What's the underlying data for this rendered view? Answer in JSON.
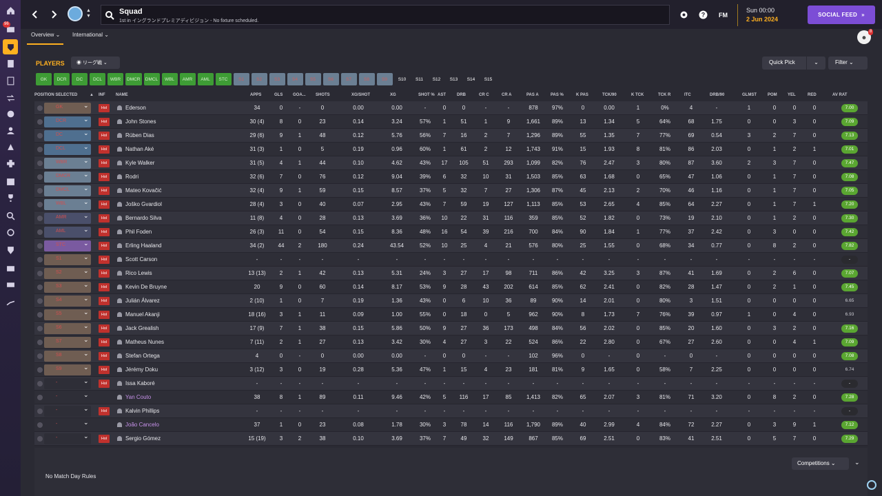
{
  "topbar": {
    "title": "Squad",
    "subtitle": "1st in イングランドプレミアディビジョン - No fixture scheduled.",
    "fm_logo": "FM",
    "date_time": "Sun 00:00",
    "date_day": "2 Jun 2024",
    "social_feed": "SOCIAL FEED"
  },
  "rail_badge": "96",
  "subnav": {
    "tabs": [
      {
        "label": "Overview"
      },
      {
        "label": "International"
      }
    ],
    "avatar_badge": "8"
  },
  "players_bar": {
    "label": "PLAYERS",
    "league_select": "リーグ戦",
    "quick_pick": "Quick Pick",
    "filter": "Filter"
  },
  "position_chips": [
    {
      "label": "GK",
      "color": "green"
    },
    {
      "label": "DCR",
      "color": "green"
    },
    {
      "label": "DC",
      "color": "green"
    },
    {
      "label": "DCL",
      "color": "green"
    },
    {
      "label": "WBR",
      "color": "green"
    },
    {
      "label": "DMCR",
      "color": "green"
    },
    {
      "label": "DMCL",
      "color": "green"
    },
    {
      "label": "WBL",
      "color": "green"
    },
    {
      "label": "AMR",
      "color": "green"
    },
    {
      "label": "AML",
      "color": "green"
    },
    {
      "label": "STC",
      "color": "green"
    },
    {
      "label": "S1",
      "color": "grey"
    },
    {
      "label": "S2",
      "color": "grey"
    },
    {
      "label": "S3",
      "color": "grey"
    },
    {
      "label": "S4",
      "color": "grey"
    },
    {
      "label": "S5",
      "color": "grey"
    },
    {
      "label": "S6",
      "color": "grey"
    },
    {
      "label": "S7",
      "color": "grey"
    },
    {
      "label": "S8",
      "color": "grey"
    },
    {
      "label": "S9",
      "color": "grey"
    },
    {
      "label": "S10",
      "color": "plain"
    },
    {
      "label": "S11",
      "color": "plain"
    },
    {
      "label": "S12",
      "color": "plain"
    },
    {
      "label": "S13",
      "color": "plain"
    },
    {
      "label": "S14",
      "color": "plain"
    },
    {
      "label": "S15",
      "color": "plain"
    }
  ],
  "columns": [
    "POSITION SELECTED",
    "INF",
    "NAME",
    "APPS",
    "GLS",
    "GOA...",
    "SHOTS",
    "XG/SHOT",
    "XG",
    "SHOT %",
    "AST",
    "DRB",
    "CR C",
    "CR A",
    "PAS A",
    "PAS %",
    "K PAS",
    "TCK/90",
    "K TCK",
    "TCK R",
    "ITC",
    "DRB/90",
    "GLMST",
    "POM",
    "YEL",
    "RED",
    "AV RAT"
  ],
  "rows": [
    {
      "pos": "GK",
      "pos_color": "#6f5d52",
      "pos_text": "#d05050",
      "inf": "Hol",
      "name": "Ederson",
      "name_color": "#e6e6ea",
      "vals": [
        "34",
        "0",
        "-",
        "0",
        "0.00",
        "0.00",
        "-",
        "0",
        "0",
        "-",
        "-",
        "878",
        "97%",
        "0",
        "0.00",
        "1",
        "0%",
        "4",
        "-",
        "1",
        "0",
        "0",
        "0"
      ],
      "avrat": "7.00",
      "avrat_style": "green"
    },
    {
      "pos": "DCR",
      "pos_color": "#4f6f8f",
      "pos_text": "#d05050",
      "inf": "Hol",
      "name": "John Stones",
      "name_color": "#e6e6ea",
      "vals": [
        "30 (4)",
        "8",
        "0",
        "23",
        "0.14",
        "3.24",
        "57%",
        "1",
        "51",
        "1",
        "9",
        "1,661",
        "89%",
        "13",
        "1.34",
        "5",
        "64%",
        "68",
        "1.75",
        "0",
        "0",
        "3",
        "0"
      ],
      "avrat": "7.09",
      "avrat_style": "green"
    },
    {
      "pos": "DC",
      "pos_color": "#4f6f8f",
      "pos_text": "#d05050",
      "inf": "Hol",
      "name": "Rúben Dias",
      "name_color": "#e6e6ea",
      "vals": [
        "29 (6)",
        "9",
        "1",
        "48",
        "0.12",
        "5.76",
        "56%",
        "7",
        "16",
        "2",
        "7",
        "1,296",
        "89%",
        "55",
        "1.35",
        "7",
        "77%",
        "69",
        "0.54",
        "3",
        "2",
        "7",
        "0"
      ],
      "avrat": "7.13",
      "avrat_style": "green"
    },
    {
      "pos": "DCL",
      "pos_color": "#4f6f8f",
      "pos_text": "#d05050",
      "inf": "Hol",
      "name": "Nathan Aké",
      "name_color": "#e6e6ea",
      "vals": [
        "31 (3)",
        "1",
        "0",
        "5",
        "0.19",
        "0.96",
        "60%",
        "1",
        "61",
        "2",
        "12",
        "1,743",
        "91%",
        "15",
        "1.93",
        "8",
        "81%",
        "86",
        "2.03",
        "0",
        "1",
        "2",
        "1"
      ],
      "avrat": "7.01",
      "avrat_style": "green"
    },
    {
      "pos": "WBR",
      "pos_color": "#6b7f93",
      "pos_text": "#d05050",
      "inf": "Hol",
      "name": "Kyle Walker",
      "name_color": "#e6e6ea",
      "vals": [
        "31 (5)",
        "4",
        "1",
        "44",
        "0.10",
        "4.62",
        "43%",
        "17",
        "105",
        "51",
        "293",
        "1,099",
        "82%",
        "76",
        "2.47",
        "3",
        "80%",
        "87",
        "3.60",
        "2",
        "3",
        "7",
        "0"
      ],
      "avrat": "7.47",
      "avrat_style": "green"
    },
    {
      "pos": "DMCR",
      "pos_color": "#6b7f93",
      "pos_text": "#d05050",
      "inf": "Hol",
      "name": "Rodri",
      "name_color": "#e6e6ea",
      "vals": [
        "32 (6)",
        "7",
        "0",
        "76",
        "0.12",
        "9.04",
        "39%",
        "6",
        "32",
        "10",
        "31",
        "1,503",
        "85%",
        "63",
        "1.68",
        "0",
        "65%",
        "47",
        "1.06",
        "0",
        "1",
        "7",
        "0"
      ],
      "avrat": "7.08",
      "avrat_style": "green"
    },
    {
      "pos": "DMCL",
      "pos_color": "#6b7f93",
      "pos_text": "#d05050",
      "inf": "Hol",
      "name": "Mateo Kovačić",
      "name_color": "#e6e6ea",
      "vals": [
        "32 (4)",
        "9",
        "1",
        "59",
        "0.15",
        "8.57",
        "37%",
        "5",
        "32",
        "7",
        "27",
        "1,306",
        "87%",
        "45",
        "2.13",
        "2",
        "70%",
        "46",
        "1.16",
        "0",
        "1",
        "7",
        "0"
      ],
      "avrat": "7.05",
      "avrat_style": "green"
    },
    {
      "pos": "WBL",
      "pos_color": "#6b7f93",
      "pos_text": "#d05050",
      "inf": "Hol",
      "name": "Joško Gvardiol",
      "name_color": "#e6e6ea",
      "vals": [
        "28 (4)",
        "3",
        "0",
        "40",
        "0.07",
        "2.95",
        "43%",
        "7",
        "59",
        "19",
        "127",
        "1,113",
        "85%",
        "53",
        "2.65",
        "4",
        "85%",
        "64",
        "2.27",
        "0",
        "1",
        "7",
        "1"
      ],
      "avrat": "7.20",
      "avrat_style": "green"
    },
    {
      "pos": "AMR",
      "pos_color": "#4a4f6a",
      "pos_text": "#d05050",
      "inf": "Hol",
      "name": "Bernardo Silva",
      "name_color": "#e6e6ea",
      "vals": [
        "11 (8)",
        "4",
        "0",
        "28",
        "0.13",
        "3.69",
        "36%",
        "10",
        "22",
        "31",
        "116",
        "359",
        "85%",
        "52",
        "1.82",
        "0",
        "73%",
        "19",
        "2.10",
        "0",
        "1",
        "2",
        "0"
      ],
      "avrat": "7.30",
      "avrat_style": "green"
    },
    {
      "pos": "AML",
      "pos_color": "#4a4f6a",
      "pos_text": "#d05050",
      "inf": "Hol",
      "name": "Phil Foden",
      "name_color": "#e6e6ea",
      "vals": [
        "26 (3)",
        "11",
        "0",
        "54",
        "0.15",
        "8.36",
        "48%",
        "16",
        "54",
        "39",
        "216",
        "700",
        "84%",
        "90",
        "1.84",
        "1",
        "77%",
        "37",
        "2.42",
        "0",
        "3",
        "0",
        "0"
      ],
      "avrat": "7.42",
      "avrat_style": "green"
    },
    {
      "pos": "STC",
      "pos_color": "#7a5aa0",
      "pos_text": "#d05050",
      "inf": "Hol",
      "name": "Erling Haaland",
      "name_color": "#e6e6ea",
      "vals": [
        "34 (2)",
        "44",
        "2",
        "180",
        "0.24",
        "43.54",
        "52%",
        "10",
        "25",
        "4",
        "21",
        "576",
        "80%",
        "25",
        "1.55",
        "0",
        "68%",
        "34",
        "0.77",
        "0",
        "8",
        "2",
        "0"
      ],
      "avrat": "7.82",
      "avrat_style": "green"
    },
    {
      "pos": "S1",
      "pos_color": "#6f5d52",
      "pos_text": "#d05050",
      "inf": "Hol",
      "name": "Scott Carson",
      "name_color": "#e6e6ea",
      "vals": [
        "-",
        "-",
        "-",
        "-",
        "-",
        "-",
        "-",
        "-",
        "-",
        "-",
        "-",
        "-",
        "-",
        "-",
        "-",
        "-",
        "-",
        "-",
        "-",
        "-",
        "-",
        "-",
        "-"
      ],
      "avrat": "-",
      "avrat_style": "dark"
    },
    {
      "pos": "S2",
      "pos_color": "#6f5d52",
      "pos_text": "#d05050",
      "inf": "Hol",
      "name": "Rico Lewis",
      "name_color": "#e6e6ea",
      "vals": [
        "13 (13)",
        "2",
        "1",
        "42",
        "0.13",
        "5.31",
        "24%",
        "3",
        "27",
        "17",
        "98",
        "711",
        "86%",
        "42",
        "3.25",
        "3",
        "87%",
        "41",
        "1.69",
        "0",
        "2",
        "6",
        "0"
      ],
      "avrat": "7.07",
      "avrat_style": "green"
    },
    {
      "pos": "S3",
      "pos_color": "#6f5d52",
      "pos_text": "#d05050",
      "inf": "Hol",
      "name": "Kevin De Bruyne",
      "name_color": "#e6e6ea",
      "vals": [
        "20",
        "9",
        "0",
        "60",
        "0.14",
        "8.17",
        "53%",
        "9",
        "28",
        "43",
        "202",
        "614",
        "85%",
        "62",
        "2.41",
        "0",
        "82%",
        "28",
        "1.47",
        "0",
        "2",
        "1",
        "0"
      ],
      "avrat": "7.45",
      "avrat_style": "green"
    },
    {
      "pos": "S4",
      "pos_color": "#6f5d52",
      "pos_text": "#d05050",
      "inf": "Hol",
      "name": "Julián Álvarez",
      "name_color": "#e6e6ea",
      "vals": [
        "2 (10)",
        "1",
        "0",
        "7",
        "0.19",
        "1.36",
        "43%",
        "0",
        "6",
        "10",
        "36",
        "89",
        "90%",
        "14",
        "2.01",
        "0",
        "80%",
        "3",
        "1.51",
        "0",
        "0",
        "0",
        "0"
      ],
      "avrat": "6.65",
      "avrat_style": "none"
    },
    {
      "pos": "S5",
      "pos_color": "#6f5d52",
      "pos_text": "#d05050",
      "inf": "Hol",
      "name": "Manuel Akanji",
      "name_color": "#e6e6ea",
      "vals": [
        "18 (16)",
        "3",
        "1",
        "11",
        "0.09",
        "1.00",
        "55%",
        "0",
        "18",
        "0",
        "5",
        "962",
        "90%",
        "8",
        "1.73",
        "7",
        "76%",
        "39",
        "0.97",
        "1",
        "0",
        "4",
        "0"
      ],
      "avrat": "6.93",
      "avrat_style": "none"
    },
    {
      "pos": "S6",
      "pos_color": "#6f5d52",
      "pos_text": "#d05050",
      "inf": "Hol",
      "name": "Jack Grealish",
      "name_color": "#e6e6ea",
      "vals": [
        "17 (9)",
        "7",
        "1",
        "38",
        "0.15",
        "5.86",
        "50%",
        "9",
        "27",
        "36",
        "173",
        "498",
        "84%",
        "56",
        "2.02",
        "0",
        "85%",
        "20",
        "1.60",
        "0",
        "3",
        "2",
        "0"
      ],
      "avrat": "7.16",
      "avrat_style": "green"
    },
    {
      "pos": "S7",
      "pos_color": "#6f5d52",
      "pos_text": "#d05050",
      "inf": "Hol",
      "name": "Matheus Nunes",
      "name_color": "#e6e6ea",
      "vals": [
        "7 (11)",
        "2",
        "1",
        "27",
        "0.13",
        "3.42",
        "30%",
        "4",
        "27",
        "3",
        "22",
        "524",
        "86%",
        "22",
        "2.80",
        "0",
        "67%",
        "27",
        "2.60",
        "0",
        "0",
        "4",
        "1"
      ],
      "avrat": "7.09",
      "avrat_style": "green"
    },
    {
      "pos": "S8",
      "pos_color": "#6f5d52",
      "pos_text": "#d05050",
      "inf": "Hol",
      "name": "Stefan Ortega",
      "name_color": "#e6e6ea",
      "vals": [
        "4",
        "0",
        "-",
        "0",
        "0.00",
        "0.00",
        "-",
        "0",
        "0",
        "-",
        "-",
        "102",
        "96%",
        "0",
        "-",
        "0",
        "-",
        "0",
        "-",
        "0",
        "0",
        "0",
        "0"
      ],
      "avrat": "7.08",
      "avrat_style": "green"
    },
    {
      "pos": "S9",
      "pos_color": "#6f5d52",
      "pos_text": "#d05050",
      "inf": "Hol",
      "name": "Jérémy Doku",
      "name_color": "#e6e6ea",
      "vals": [
        "3 (12)",
        "3",
        "0",
        "19",
        "0.28",
        "5.36",
        "47%",
        "1",
        "15",
        "4",
        "23",
        "181",
        "81%",
        "9",
        "1.65",
        "0",
        "58%",
        "7",
        "2.25",
        "0",
        "0",
        "0",
        "0"
      ],
      "avrat": "6.74",
      "avrat_style": "none"
    },
    {
      "pos": "-",
      "pos_color": "#2e2e37",
      "pos_text": "#d05050",
      "inf": "Hol",
      "name": "Issa Kaboré",
      "name_color": "#e6e6ea",
      "vals": [
        "-",
        "-",
        "-",
        "-",
        "-",
        "-",
        "-",
        "-",
        "-",
        "-",
        "-",
        "-",
        "-",
        "-",
        "-",
        "-",
        "-",
        "-",
        "-",
        "-",
        "-",
        "-",
        "-"
      ],
      "avrat": "-",
      "avrat_style": "dark"
    },
    {
      "pos": "-",
      "pos_color": "#2e2e37",
      "pos_text": "#d05050",
      "inf": "",
      "name": "Yan Couto",
      "name_color": "#c792ea",
      "vals": [
        "38",
        "8",
        "1",
        "89",
        "0.11",
        "9.46",
        "42%",
        "5",
        "116",
        "17",
        "85",
        "1,413",
        "82%",
        "65",
        "2.07",
        "3",
        "81%",
        "71",
        "3.20",
        "0",
        "8",
        "2",
        "0"
      ],
      "avrat": "7.28",
      "avrat_style": "green"
    },
    {
      "pos": "-",
      "pos_color": "#2e2e37",
      "pos_text": "#d05050",
      "inf": "Hol",
      "name": "Kalvin Phillips",
      "name_color": "#e6e6ea",
      "vals": [
        "-",
        "-",
        "-",
        "-",
        "-",
        "-",
        "-",
        "-",
        "-",
        "-",
        "-",
        "-",
        "-",
        "-",
        "-",
        "-",
        "-",
        "-",
        "-",
        "-",
        "-",
        "-",
        "-"
      ],
      "avrat": "-",
      "avrat_style": "dark"
    },
    {
      "pos": "-",
      "pos_color": "#2e2e37",
      "pos_text": "#d05050",
      "inf": "",
      "name": "João Cancelo",
      "name_color": "#c792ea",
      "vals": [
        "37",
        "1",
        "0",
        "23",
        "0.08",
        "1.78",
        "30%",
        "3",
        "78",
        "14",
        "116",
        "1,790",
        "89%",
        "40",
        "2.99",
        "4",
        "84%",
        "72",
        "2.27",
        "0",
        "3",
        "9",
        "1"
      ],
      "avrat": "7.12",
      "avrat_style": "green"
    },
    {
      "pos": "-",
      "pos_color": "#2e2e37",
      "pos_text": "#d05050",
      "inf": "Hol",
      "name": "Sergio Gómez",
      "name_color": "#e6e6ea",
      "vals": [
        "15 (19)",
        "3",
        "2",
        "38",
        "0.10",
        "3.69",
        "37%",
        "7",
        "49",
        "32",
        "149",
        "867",
        "85%",
        "69",
        "2.51",
        "0",
        "83%",
        "41",
        "2.51",
        "0",
        "5",
        "7",
        "0"
      ],
      "avrat": "7.29",
      "avrat_style": "green"
    }
  ],
  "bottom": {
    "no_match_rules": "No Match Day Rules",
    "competitions": "Competitions"
  }
}
